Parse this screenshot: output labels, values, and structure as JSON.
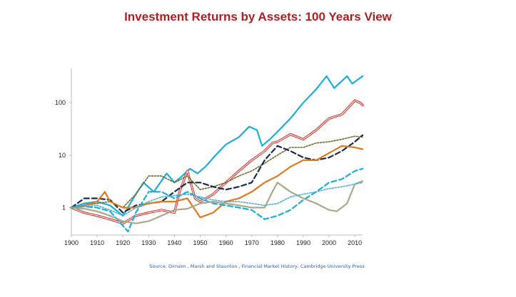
{
  "title": "Investment Returns by Assets: 100 Years View",
  "source": "Source: Dimson , Marsh and Staunton , Financial Market History, Cambridge University Press",
  "chart_data": {
    "type": "line",
    "title": "Investment Returns by Assets: 100 Years View",
    "xlabel": "",
    "ylabel": "",
    "yscale": "log",
    "xlim": [
      1900,
      2013
    ],
    "ylim": [
      0.3,
      450
    ],
    "grid": false,
    "legend": "none",
    "x_ticks": [
      "1900",
      "1910",
      "1920",
      "1930",
      "1940",
      "1950",
      "1960",
      "1970",
      "1980",
      "1990",
      "2000",
      "2010"
    ],
    "y_ticks": [
      "1",
      "10",
      "100"
    ],
    "series": [
      {
        "color": "#1aafd8",
        "style": "solid",
        "x": [
          1900,
          1905,
          1910,
          1915,
          1920,
          1925,
          1928,
          1932,
          1937,
          1940,
          1943,
          1946,
          1949,
          1952,
          1956,
          1960,
          1965,
          1969,
          1972,
          1974,
          1977,
          1980,
          1985,
          1990,
          1995,
          1999,
          2002,
          2007,
          2009,
          2013
        ],
        "y": [
          1,
          1.2,
          1.3,
          1.1,
          0.7,
          1.8,
          3,
          2,
          4.5,
          3,
          4,
          5.5,
          4.5,
          6,
          10,
          16,
          22,
          35,
          30,
          15,
          20,
          28,
          50,
          100,
          180,
          320,
          190,
          320,
          230,
          320
        ]
      },
      {
        "color": "#d9302a",
        "style": "double",
        "x": [
          1900,
          1905,
          1910,
          1915,
          1920,
          1925,
          1930,
          1935,
          1940,
          1942,
          1945,
          1948,
          1950,
          1955,
          1960,
          1965,
          1970,
          1975,
          1978,
          1980,
          1985,
          1990,
          1995,
          2000,
          2005,
          2010,
          2012,
          2013
        ],
        "y": [
          1,
          0.8,
          0.7,
          0.6,
          0.5,
          0.7,
          0.8,
          0.9,
          0.8,
          2,
          5,
          1.5,
          1.3,
          1.8,
          3,
          5,
          8,
          12,
          17,
          18,
          25,
          20,
          30,
          50,
          60,
          110,
          100,
          90
        ]
      },
      {
        "color": "#6b6b2a",
        "style": "dotted",
        "x": [
          1900,
          1905,
          1910,
          1915,
          1920,
          1925,
          1930,
          1935,
          1940,
          1945,
          1950,
          1955,
          1960,
          1965,
          1970,
          1975,
          1980,
          1985,
          1990,
          1995,
          2000,
          2005,
          2010,
          2013
        ],
        "y": [
          1,
          1.1,
          1.2,
          1.3,
          1,
          1.8,
          4,
          4,
          3,
          4,
          2.2,
          2.5,
          3,
          4,
          5,
          7,
          10,
          14,
          14,
          17,
          18,
          20,
          23,
          22
        ]
      },
      {
        "color": "#1a2a4a",
        "style": "dashed",
        "x": [
          1900,
          1905,
          1910,
          1915,
          1920,
          1925,
          1930,
          1935,
          1940,
          1945,
          1950,
          1955,
          1960,
          1965,
          1970,
          1975,
          1980,
          1985,
          1990,
          1995,
          2000,
          2005,
          2010,
          2013
        ],
        "y": [
          1,
          1.5,
          1.5,
          1.4,
          0.8,
          1.1,
          1.2,
          1.3,
          2,
          3,
          3,
          2.5,
          2.2,
          2.5,
          3,
          8,
          15,
          12,
          9,
          8,
          9,
          12,
          18,
          24
        ]
      },
      {
        "color": "#de7a1e",
        "style": "solid",
        "x": [
          1900,
          1905,
          1910,
          1913,
          1915,
          1920,
          1925,
          1930,
          1935,
          1940,
          1945,
          1950,
          1955,
          1960,
          1965,
          1970,
          1975,
          1980,
          1985,
          1990,
          1995,
          2000,
          2005,
          2010,
          2013
        ],
        "y": [
          1,
          1.1,
          1.3,
          2,
          1.3,
          1,
          1,
          1.2,
          1.3,
          1.3,
          1.5,
          0.65,
          0.8,
          1.3,
          1.5,
          2,
          3,
          4,
          6,
          8,
          8,
          11,
          15,
          14,
          13
        ]
      },
      {
        "color": "#1aafd8",
        "style": "dashed",
        "x": [
          1900,
          1905,
          1910,
          1915,
          1920,
          1922,
          1925,
          1930,
          1935,
          1940,
          1945,
          1950,
          1955,
          1960,
          1965,
          1970,
          1975,
          1980,
          1985,
          1990,
          1995,
          2000,
          2005,
          2010,
          2013
        ],
        "y": [
          1,
          1.05,
          1,
          0.85,
          0.45,
          0.35,
          0.8,
          2,
          2,
          1.5,
          2,
          1.5,
          1.2,
          1.1,
          1,
          0.9,
          0.6,
          0.7,
          0.9,
          1.4,
          2,
          3,
          3.5,
          5,
          5.5
        ]
      },
      {
        "color": "#aaa78a",
        "style": "solid",
        "x": [
          1900,
          1905,
          1910,
          1915,
          1920,
          1925,
          1930,
          1935,
          1940,
          1945,
          1950,
          1955,
          1960,
          1965,
          1970,
          1975,
          1978,
          1980,
          1985,
          1990,
          1995,
          2000,
          2003,
          2007,
          2010,
          2013
        ],
        "y": [
          1,
          0.95,
          0.85,
          0.7,
          0.55,
          0.5,
          0.55,
          0.7,
          0.9,
          0.95,
          1.2,
          1.3,
          1.2,
          1.1,
          1,
          1,
          2,
          3,
          2,
          1.5,
          1.2,
          0.9,
          0.85,
          1.2,
          2.8,
          3.2
        ]
      },
      {
        "color": "#4ab0d6",
        "style": "dotted",
        "x": [
          1900,
          1905,
          1910,
          1915,
          1920,
          1925,
          1930,
          1935,
          1940,
          1945,
          1950,
          1955,
          1960,
          1965,
          1970,
          1975,
          1980,
          1985,
          1990,
          1995,
          2000,
          2005,
          2010,
          2013
        ],
        "y": [
          1,
          1.05,
          1.1,
          0.9,
          0.7,
          1,
          1.3,
          1.6,
          1.7,
          1.8,
          1.6,
          1.4,
          1.3,
          1.3,
          1.2,
          1.1,
          1.2,
          1.6,
          1.8,
          2,
          2.3,
          2.5,
          2.8,
          3
        ]
      }
    ]
  }
}
